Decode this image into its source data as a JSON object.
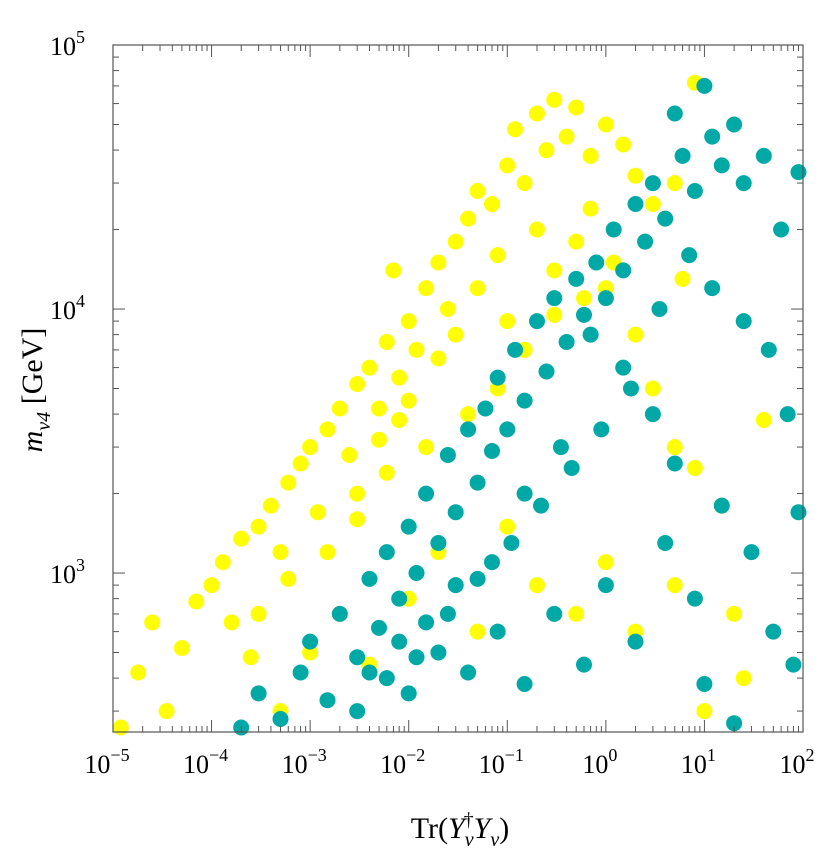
{
  "chart_data": {
    "type": "scatter",
    "title": "",
    "xlabel": "Tr(Y_ν† Y_ν)",
    "ylabel": "m_ν4  [GeV]",
    "xscale": "log",
    "yscale": "log",
    "xlim": [
      1e-05,
      100
    ],
    "ylim": [
      250,
      100000
    ],
    "grid": false,
    "legend": "none",
    "x_ticks": [
      {
        "value": 1e-05,
        "base": "10",
        "exp": "−5"
      },
      {
        "value": 0.0001,
        "base": "10",
        "exp": "−4"
      },
      {
        "value": 0.001,
        "base": "10",
        "exp": "−3"
      },
      {
        "value": 0.01,
        "base": "10",
        "exp": "−2"
      },
      {
        "value": 0.1,
        "base": "10",
        "exp": "−1"
      },
      {
        "value": 1,
        "base": "10",
        "exp": "0"
      },
      {
        "value": 10,
        "base": "10",
        "exp": "1"
      },
      {
        "value": 100,
        "base": "10",
        "exp": "2"
      }
    ],
    "y_ticks": [
      {
        "value": 1000,
        "base": "10",
        "exp": "3"
      },
      {
        "value": 10000,
        "base": "10",
        "exp": "4"
      },
      {
        "value": 100000,
        "base": "10",
        "exp": "5"
      }
    ],
    "colors": {
      "series_1": "#ffff00",
      "series_2": "#00a9a5",
      "frame": "#555555"
    },
    "series": [
      {
        "color": "#ffff00",
        "points": [
          [
            1.2e-05,
            260
          ],
          [
            1.8e-05,
            420
          ],
          [
            2.5e-05,
            650
          ],
          [
            3.5e-05,
            300
          ],
          [
            5e-05,
            520
          ],
          [
            7e-05,
            780
          ],
          [
            0.0001,
            900
          ],
          [
            0.00013,
            1100
          ],
          [
            0.00016,
            650
          ],
          [
            0.0002,
            1350
          ],
          [
            0.00025,
            480
          ],
          [
            0.0003,
            1500
          ],
          [
            0.0004,
            1800
          ],
          [
            0.0005,
            1200
          ],
          [
            0.0006,
            2200
          ],
          [
            0.0008,
            2600
          ],
          [
            0.001,
            3000
          ],
          [
            0.0012,
            1700
          ],
          [
            0.0015,
            3500
          ],
          [
            0.002,
            4200
          ],
          [
            0.0025,
            2800
          ],
          [
            0.003,
            5200
          ],
          [
            0.004,
            6000
          ],
          [
            0.005,
            4200
          ],
          [
            0.006,
            7500
          ],
          [
            0.007,
            14000
          ],
          [
            0.008,
            5500
          ],
          [
            0.01,
            9000
          ],
          [
            0.012,
            7000
          ],
          [
            0.015,
            12000
          ],
          [
            0.02,
            15000
          ],
          [
            0.025,
            10000
          ],
          [
            0.03,
            18000
          ],
          [
            0.04,
            22000
          ],
          [
            0.05,
            28000
          ],
          [
            0.07,
            25000
          ],
          [
            0.1,
            35000
          ],
          [
            0.12,
            48000
          ],
          [
            0.15,
            30000
          ],
          [
            0.2,
            55000
          ],
          [
            0.25,
            40000
          ],
          [
            0.3,
            62000
          ],
          [
            0.4,
            45000
          ],
          [
            0.5,
            58000
          ],
          [
            0.7,
            38000
          ],
          [
            1.0,
            50000
          ],
          [
            1.5,
            42000
          ],
          [
            2.0,
            32000
          ],
          [
            3.0,
            25000
          ],
          [
            5.0,
            30000
          ],
          [
            8.0,
            72000
          ],
          [
            0.003,
            2000
          ],
          [
            0.005,
            3200
          ],
          [
            0.008,
            3800
          ],
          [
            0.01,
            4500
          ],
          [
            0.02,
            6500
          ],
          [
            0.03,
            8000
          ],
          [
            0.05,
            12000
          ],
          [
            0.08,
            16000
          ],
          [
            0.1,
            9000
          ],
          [
            0.2,
            20000
          ],
          [
            0.3,
            14000
          ],
          [
            0.5,
            18000
          ],
          [
            0.7,
            24000
          ],
          [
            1.0,
            12000
          ],
          [
            2.0,
            8000
          ],
          [
            3.0,
            5000
          ],
          [
            5.0,
            3000
          ],
          [
            8.0,
            2500
          ],
          [
            15.0,
            1800
          ],
          [
            25.0,
            400
          ],
          [
            40.0,
            3800
          ],
          [
            0.0005,
            300
          ],
          [
            0.001,
            500
          ],
          [
            0.002,
            700
          ],
          [
            0.004,
            450
          ],
          [
            0.01,
            800
          ],
          [
            0.02,
            1200
          ],
          [
            0.05,
            600
          ],
          [
            0.1,
            1500
          ],
          [
            0.2,
            900
          ],
          [
            0.5,
            700
          ],
          [
            1.0,
            1100
          ],
          [
            2.0,
            600
          ],
          [
            5.0,
            900
          ],
          [
            10.0,
            300
          ],
          [
            20.0,
            700
          ],
          [
            0.0003,
            700
          ],
          [
            0.0006,
            950
          ],
          [
            0.0015,
            1200
          ],
          [
            0.003,
            1600
          ],
          [
            0.006,
            2400
          ],
          [
            0.015,
            3000
          ],
          [
            0.04,
            4000
          ],
          [
            0.08,
            5000
          ],
          [
            0.15,
            7000
          ],
          [
            0.3,
            9500
          ],
          [
            0.6,
            11000
          ],
          [
            1.2,
            15000
          ],
          [
            2.5,
            18000
          ],
          [
            4.0,
            22000
          ],
          [
            6.0,
            13000
          ]
        ]
      },
      {
        "color": "#00a9a5",
        "points": [
          [
            0.0002,
            260
          ],
          [
            0.0003,
            350
          ],
          [
            0.0005,
            280
          ],
          [
            0.0008,
            420
          ],
          [
            0.001,
            550
          ],
          [
            0.0015,
            330
          ],
          [
            0.002,
            700
          ],
          [
            0.003,
            480
          ],
          [
            0.004,
            950
          ],
          [
            0.005,
            620
          ],
          [
            0.006,
            1200
          ],
          [
            0.008,
            800
          ],
          [
            0.01,
            1500
          ],
          [
            0.012,
            1000
          ],
          [
            0.015,
            2000
          ],
          [
            0.02,
            1300
          ],
          [
            0.025,
            2800
          ],
          [
            0.03,
            1700
          ],
          [
            0.04,
            3500
          ],
          [
            0.05,
            2200
          ],
          [
            0.06,
            4200
          ],
          [
            0.07,
            2900
          ],
          [
            0.08,
            5500
          ],
          [
            0.1,
            3500
          ],
          [
            0.12,
            7000
          ],
          [
            0.15,
            4500
          ],
          [
            0.2,
            9000
          ],
          [
            0.25,
            5800
          ],
          [
            0.3,
            11000
          ],
          [
            0.4,
            7500
          ],
          [
            0.5,
            13000
          ],
          [
            0.6,
            9500
          ],
          [
            0.8,
            15000
          ],
          [
            1.0,
            11000
          ],
          [
            1.2,
            20000
          ],
          [
            1.5,
            14000
          ],
          [
            2.0,
            25000
          ],
          [
            2.5,
            18000
          ],
          [
            3.0,
            30000
          ],
          [
            4.0,
            22000
          ],
          [
            5.0,
            55000
          ],
          [
            6.0,
            38000
          ],
          [
            8.0,
            28000
          ],
          [
            10.0,
            70000
          ],
          [
            12.0,
            45000
          ],
          [
            15.0,
            35000
          ],
          [
            20.0,
            50000
          ],
          [
            25.0,
            30000
          ],
          [
            40.0,
            38000
          ],
          [
            60.0,
            20000
          ],
          [
            90.0,
            33000
          ],
          [
            0.003,
            300
          ],
          [
            0.006,
            400
          ],
          [
            0.01,
            350
          ],
          [
            0.02,
            500
          ],
          [
            0.04,
            420
          ],
          [
            0.08,
            600
          ],
          [
            0.15,
            380
          ],
          [
            0.3,
            700
          ],
          [
            0.6,
            450
          ],
          [
            1.0,
            900
          ],
          [
            2.0,
            550
          ],
          [
            4.0,
            1300
          ],
          [
            8.0,
            800
          ],
          [
            15.0,
            1800
          ],
          [
            30.0,
            1200
          ],
          [
            50.0,
            600
          ],
          [
            80.0,
            450
          ],
          [
            90.0,
            1700
          ],
          [
            20.0,
            270
          ],
          [
            10.0,
            380
          ],
          [
            5.0,
            2600
          ],
          [
            3.0,
            4000
          ],
          [
            1.5,
            6000
          ],
          [
            0.7,
            8000
          ],
          [
            0.35,
            3000
          ],
          [
            0.15,
            2000
          ],
          [
            0.07,
            1100
          ],
          [
            0.03,
            900
          ],
          [
            0.015,
            650
          ],
          [
            0.008,
            550
          ],
          [
            0.004,
            420
          ],
          [
            70.0,
            4000
          ],
          [
            45.0,
            7000
          ],
          [
            25.0,
            9000
          ],
          [
            12.0,
            12000
          ],
          [
            7.0,
            16000
          ],
          [
            3.5,
            10000
          ],
          [
            1.8,
            5000
          ],
          [
            0.9,
            3500
          ],
          [
            0.45,
            2500
          ],
          [
            0.22,
            1800
          ],
          [
            0.11,
            1300
          ],
          [
            0.05,
            950
          ],
          [
            0.025,
            700
          ],
          [
            0.012,
            480
          ]
        ]
      }
    ]
  }
}
